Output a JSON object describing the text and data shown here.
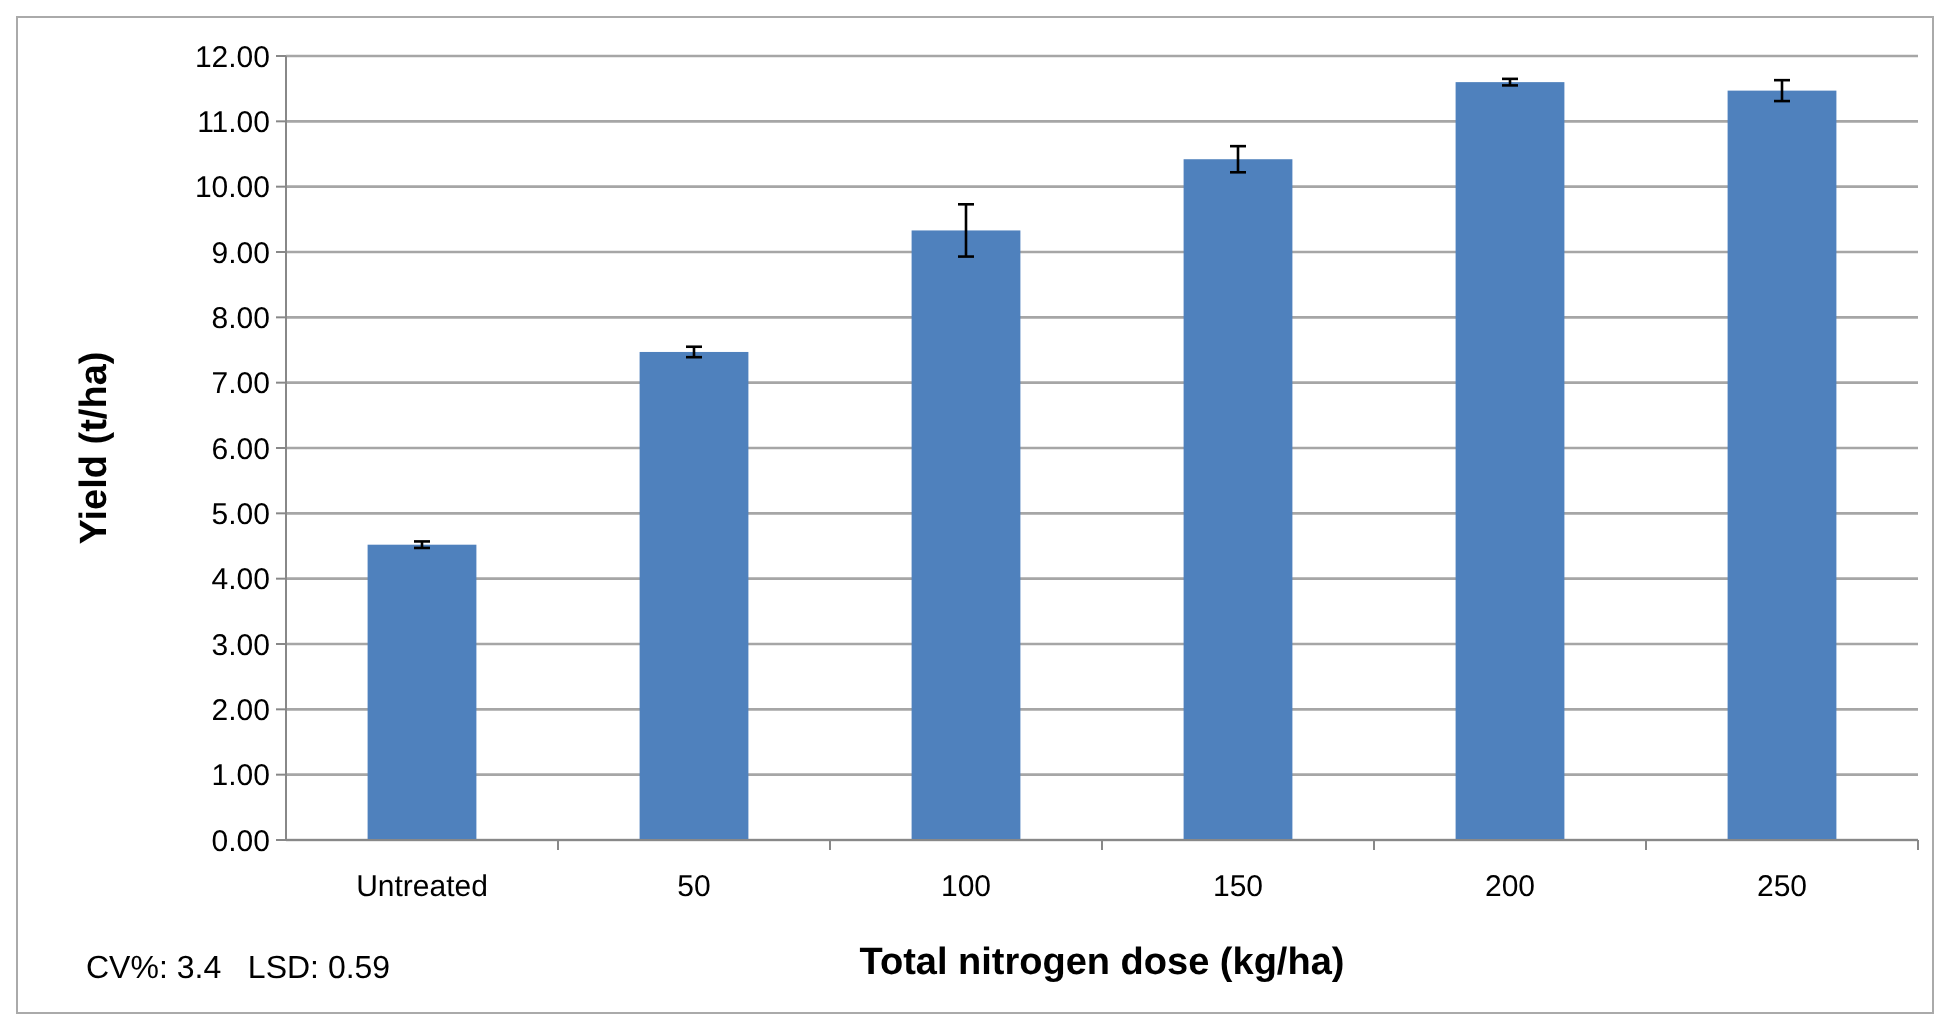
{
  "chart_data": {
    "type": "bar",
    "xlabel": "Total nitrogen dose (kg/ha)",
    "ylabel": "Yield (t/ha)",
    "categories": [
      "Untreated",
      "50",
      "100",
      "150",
      "200",
      "250"
    ],
    "values": [
      4.52,
      7.47,
      9.33,
      10.42,
      11.6,
      11.47
    ],
    "errors": [
      0.05,
      0.08,
      0.4,
      0.2,
      0.05,
      0.16
    ],
    "color": "#4f81bd",
    "ylim": [
      0,
      12
    ],
    "yticks": [
      {
        "value": 0,
        "label": "0.00"
      },
      {
        "value": 1,
        "label": "1.00"
      },
      {
        "value": 2,
        "label": "2.00"
      },
      {
        "value": 3,
        "label": "3.00"
      },
      {
        "value": 4,
        "label": "4.00"
      },
      {
        "value": 5,
        "label": "5.00"
      },
      {
        "value": 6,
        "label": "6.00"
      },
      {
        "value": 7,
        "label": "7.00"
      },
      {
        "value": 8,
        "label": "8.00"
      },
      {
        "value": 9,
        "label": "9.00"
      },
      {
        "value": 10,
        "label": "10.00"
      },
      {
        "value": 11,
        "label": "11.00"
      },
      {
        "value": 12,
        "label": "12.00"
      }
    ],
    "grid": "y",
    "annotations": [
      "CV%: 3.4   LSD: 0.59"
    ]
  }
}
